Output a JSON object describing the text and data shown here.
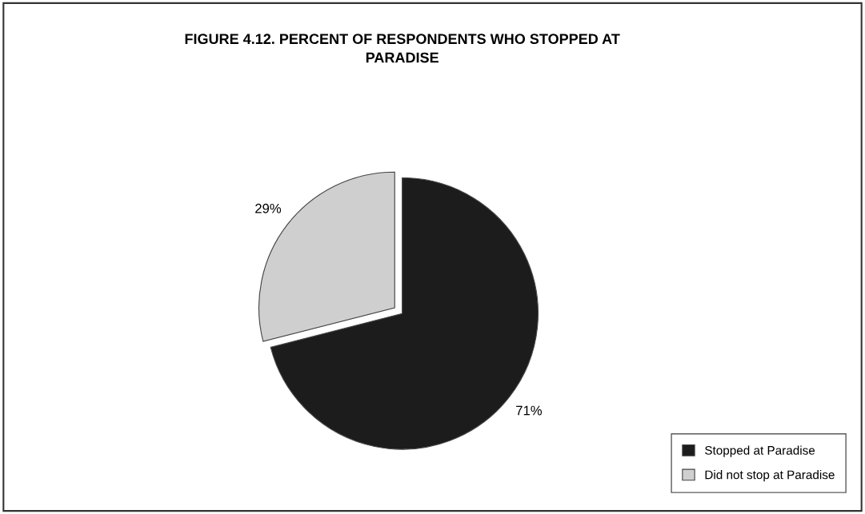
{
  "chart_data": {
    "type": "pie",
    "title": "FIGURE 4.12. PERCENT OF RESPONDENTS WHO STOPPED AT\nPARADISE",
    "categories": [
      "Stopped at Paradise",
      "Did not stop at Paradise"
    ],
    "values": [
      71,
      29
    ],
    "colors": [
      "#1c1c1c",
      "#cfcfcf"
    ],
    "value_labels": [
      "71%",
      "29%"
    ],
    "legend": "bottom right"
  }
}
